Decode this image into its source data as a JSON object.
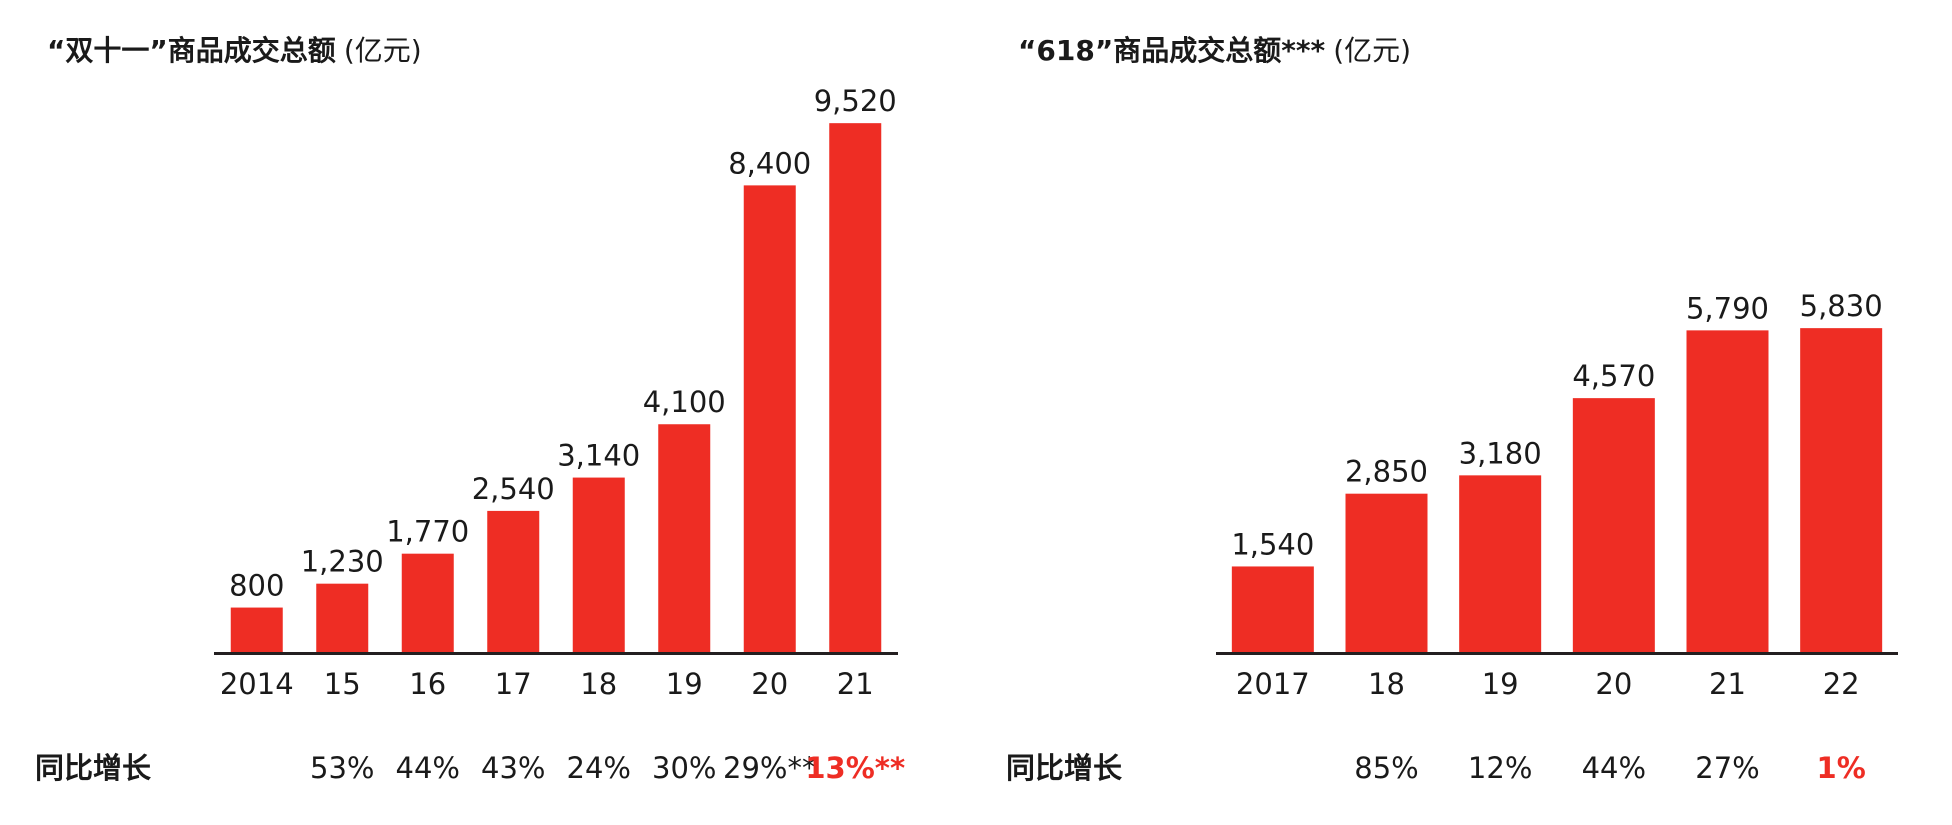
{
  "colors": {
    "bar": "#EE2D24",
    "highlight": "#EE2D24",
    "text": "#1a1a1a",
    "axis": "#231f20"
  },
  "chart_data": [
    {
      "type": "bar",
      "title_bold": "“双十一”商品成交总额",
      "title_unit": "(亿元)",
      "categories": [
        "2014",
        "15",
        "16",
        "17",
        "18",
        "19",
        "20",
        "21"
      ],
      "values": [
        800,
        1230,
        1770,
        2540,
        3140,
        4100,
        8400,
        9520
      ],
      "value_labels": [
        "800",
        "1,230",
        "1,770",
        "2,540",
        "3,140",
        "4,100",
        "8,400",
        "9,520"
      ],
      "growth_label": "同比增长",
      "growth": [
        "",
        "53%",
        "44%",
        "43%",
        "24%",
        "30%",
        "29%**",
        "13%**"
      ],
      "growth_highlight_index": 7,
      "ylim": [
        0,
        9520
      ],
      "grid": false,
      "legend": "none"
    },
    {
      "type": "bar",
      "title_bold": "“618”商品成交总额***",
      "title_unit": "(亿元)",
      "categories": [
        "2017",
        "18",
        "19",
        "20",
        "21",
        "22"
      ],
      "values": [
        1540,
        2850,
        3180,
        4570,
        5790,
        5830
      ],
      "value_labels": [
        "1,540",
        "2,850",
        "3,180",
        "4,570",
        "5,790",
        "5,830"
      ],
      "growth_label": "同比增长",
      "growth": [
        "",
        "85%",
        "12%",
        "44%",
        "27%",
        "1%"
      ],
      "growth_highlight_index": 5,
      "ylim": [
        0,
        9520
      ],
      "grid": false,
      "legend": "none"
    }
  ]
}
